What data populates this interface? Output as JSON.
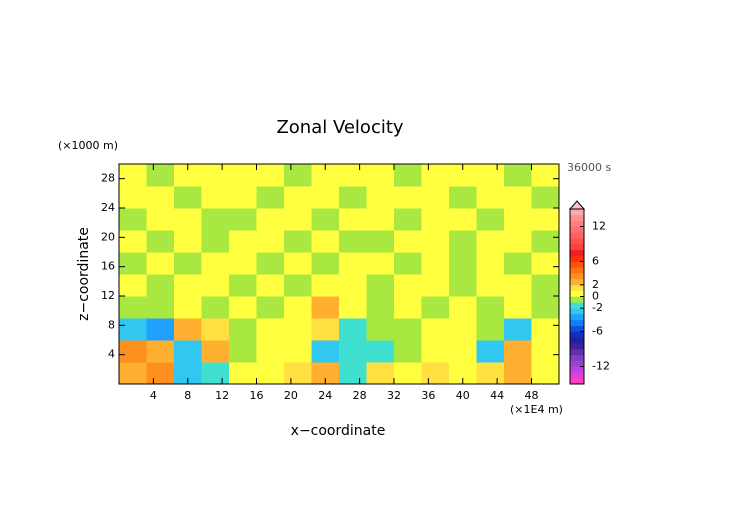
{
  "chart_data": {
    "type": "contour",
    "title": "Zonal Velocity",
    "x_label": "x−coordinate",
    "y_label": "z−coordinate",
    "x_unit": "(×1E4 m)",
    "y_unit": "(×1000 m)",
    "time_label": "36000 s",
    "xlim": [
      0,
      51.2
    ],
    "ylim": [
      0,
      30
    ],
    "xticks": [
      4,
      8,
      12,
      16,
      20,
      24,
      28,
      32,
      36,
      40,
      44,
      48
    ],
    "yticks": [
      4,
      8,
      12,
      16,
      20,
      24,
      28
    ],
    "z": [
      [
        2,
        3,
        -3,
        -2,
        0.5,
        0.5,
        1,
        2,
        -2,
        1,
        0.5,
        1,
        0.5,
        1,
        2,
        0.5
      ],
      [
        3,
        2,
        -3,
        2,
        -0.5,
        0.5,
        0.5,
        -3,
        -2,
        -2,
        -0.5,
        0.5,
        0.5,
        -3,
        2,
        0.5
      ],
      [
        -3,
        -4,
        2,
        1,
        -0.5,
        0.5,
        0.5,
        1,
        -2,
        -0.5,
        -0.5,
        0.5,
        0.5,
        -0.5,
        -3,
        0.5
      ],
      [
        -0.5,
        -0.5,
        0.5,
        -0.5,
        0.5,
        -0.5,
        0.5,
        2,
        0.5,
        -0.5,
        0.5,
        -0.5,
        0.5,
        -0.5,
        0.5,
        -0.5
      ],
      [
        0.5,
        -0.5,
        0.5,
        0.5,
        -0.5,
        0.5,
        -0.5,
        0.5,
        0.5,
        -0.5,
        0.5,
        0.5,
        -0.5,
        0.5,
        0.5,
        -0.5
      ],
      [
        -0.5,
        0.5,
        -0.5,
        0.5,
        0.5,
        -0.5,
        0.5,
        -0.5,
        0.5,
        0.5,
        -0.5,
        0.5,
        -0.5,
        0.5,
        -0.5,
        0.5
      ],
      [
        0.5,
        -0.5,
        0.5,
        -0.5,
        0.5,
        0.5,
        -0.5,
        0.5,
        -0.5,
        -0.5,
        0.5,
        0.5,
        -0.5,
        0.5,
        0.5,
        -0.5
      ],
      [
        -0.5,
        0.5,
        0.5,
        -0.5,
        -0.5,
        0.5,
        0.5,
        -0.5,
        0.5,
        0.5,
        -0.5,
        0.5,
        0.5,
        -0.5,
        0.5,
        0.5
      ],
      [
        0.5,
        0.5,
        -0.5,
        0.5,
        0.5,
        -0.5,
        0.5,
        0.5,
        -0.5,
        0.5,
        0.5,
        0.5,
        -0.5,
        0.5,
        0.5,
        -0.5
      ],
      [
        0.5,
        -0.5,
        0.5,
        0.5,
        0.5,
        0.5,
        -0.5,
        0.5,
        0.5,
        0.5,
        -0.5,
        0.5,
        0.5,
        0.5,
        -0.5,
        0.5
      ]
    ],
    "colorbar": {
      "lim": [
        -15,
        15
      ],
      "ticks": [
        12,
        6,
        2,
        0,
        -2,
        -6,
        -12
      ],
      "colors": [
        "#ff40c0",
        "#e040e0",
        "#c040e0",
        "#a040d0",
        "#8040c0",
        "#6030b0",
        "#4020a0",
        "#2020a0",
        "#1030c0",
        "#1050e0",
        "#1080f0",
        "#20a0ff",
        "#30c8f0",
        "#40e0d0",
        "#a8e840",
        "#ffff40",
        "#ffe040",
        "#ffb030",
        "#ff9020",
        "#ff7010",
        "#ff5010",
        "#ff3010",
        "#f02020",
        "#ff4040",
        "#ff5050",
        "#ff6060",
        "#ff7070",
        "#ff8080",
        "#ff9090",
        "#ffa8a8"
      ],
      "over_color": "#ffc0c0"
    }
  }
}
